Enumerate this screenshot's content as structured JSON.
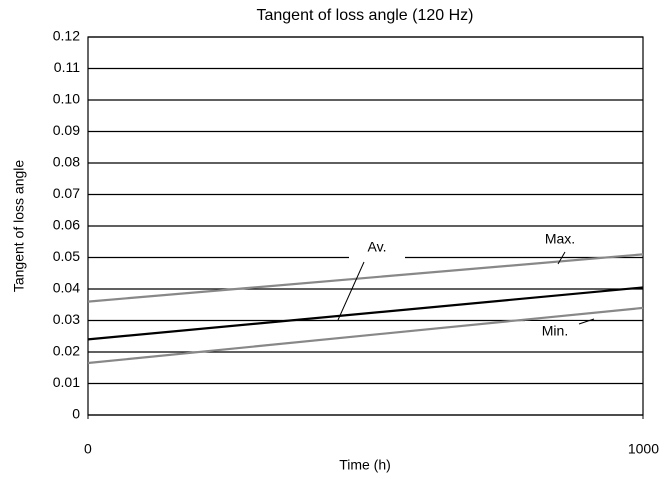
{
  "chart_data": {
    "type": "line",
    "title": "Tangent of loss angle (120 Hz)",
    "x_label": "Time (h)",
    "y_label": "Tangent of loss angle",
    "x": [
      0,
      1000
    ],
    "series": [
      {
        "name": "Max.",
        "color": "#888888",
        "values": [
          0.036,
          0.051
        ]
      },
      {
        "name": "Av.",
        "color": "#000000",
        "values": [
          0.024,
          0.0405
        ]
      },
      {
        "name": "Min.",
        "color": "#888888",
        "values": [
          0.0165,
          0.034
        ]
      }
    ],
    "xlim": [
      0,
      1000
    ],
    "xticks": [
      0,
      1000
    ],
    "ylim": [
      0,
      0.12
    ],
    "yticks": [
      0,
      0.01,
      0.02,
      0.03,
      0.04,
      0.05,
      0.06,
      0.07,
      0.08,
      0.09,
      {
        "value": 0.1,
        "label": "0.10"
      },
      0.11,
      0.12
    ],
    "grid": true
  }
}
